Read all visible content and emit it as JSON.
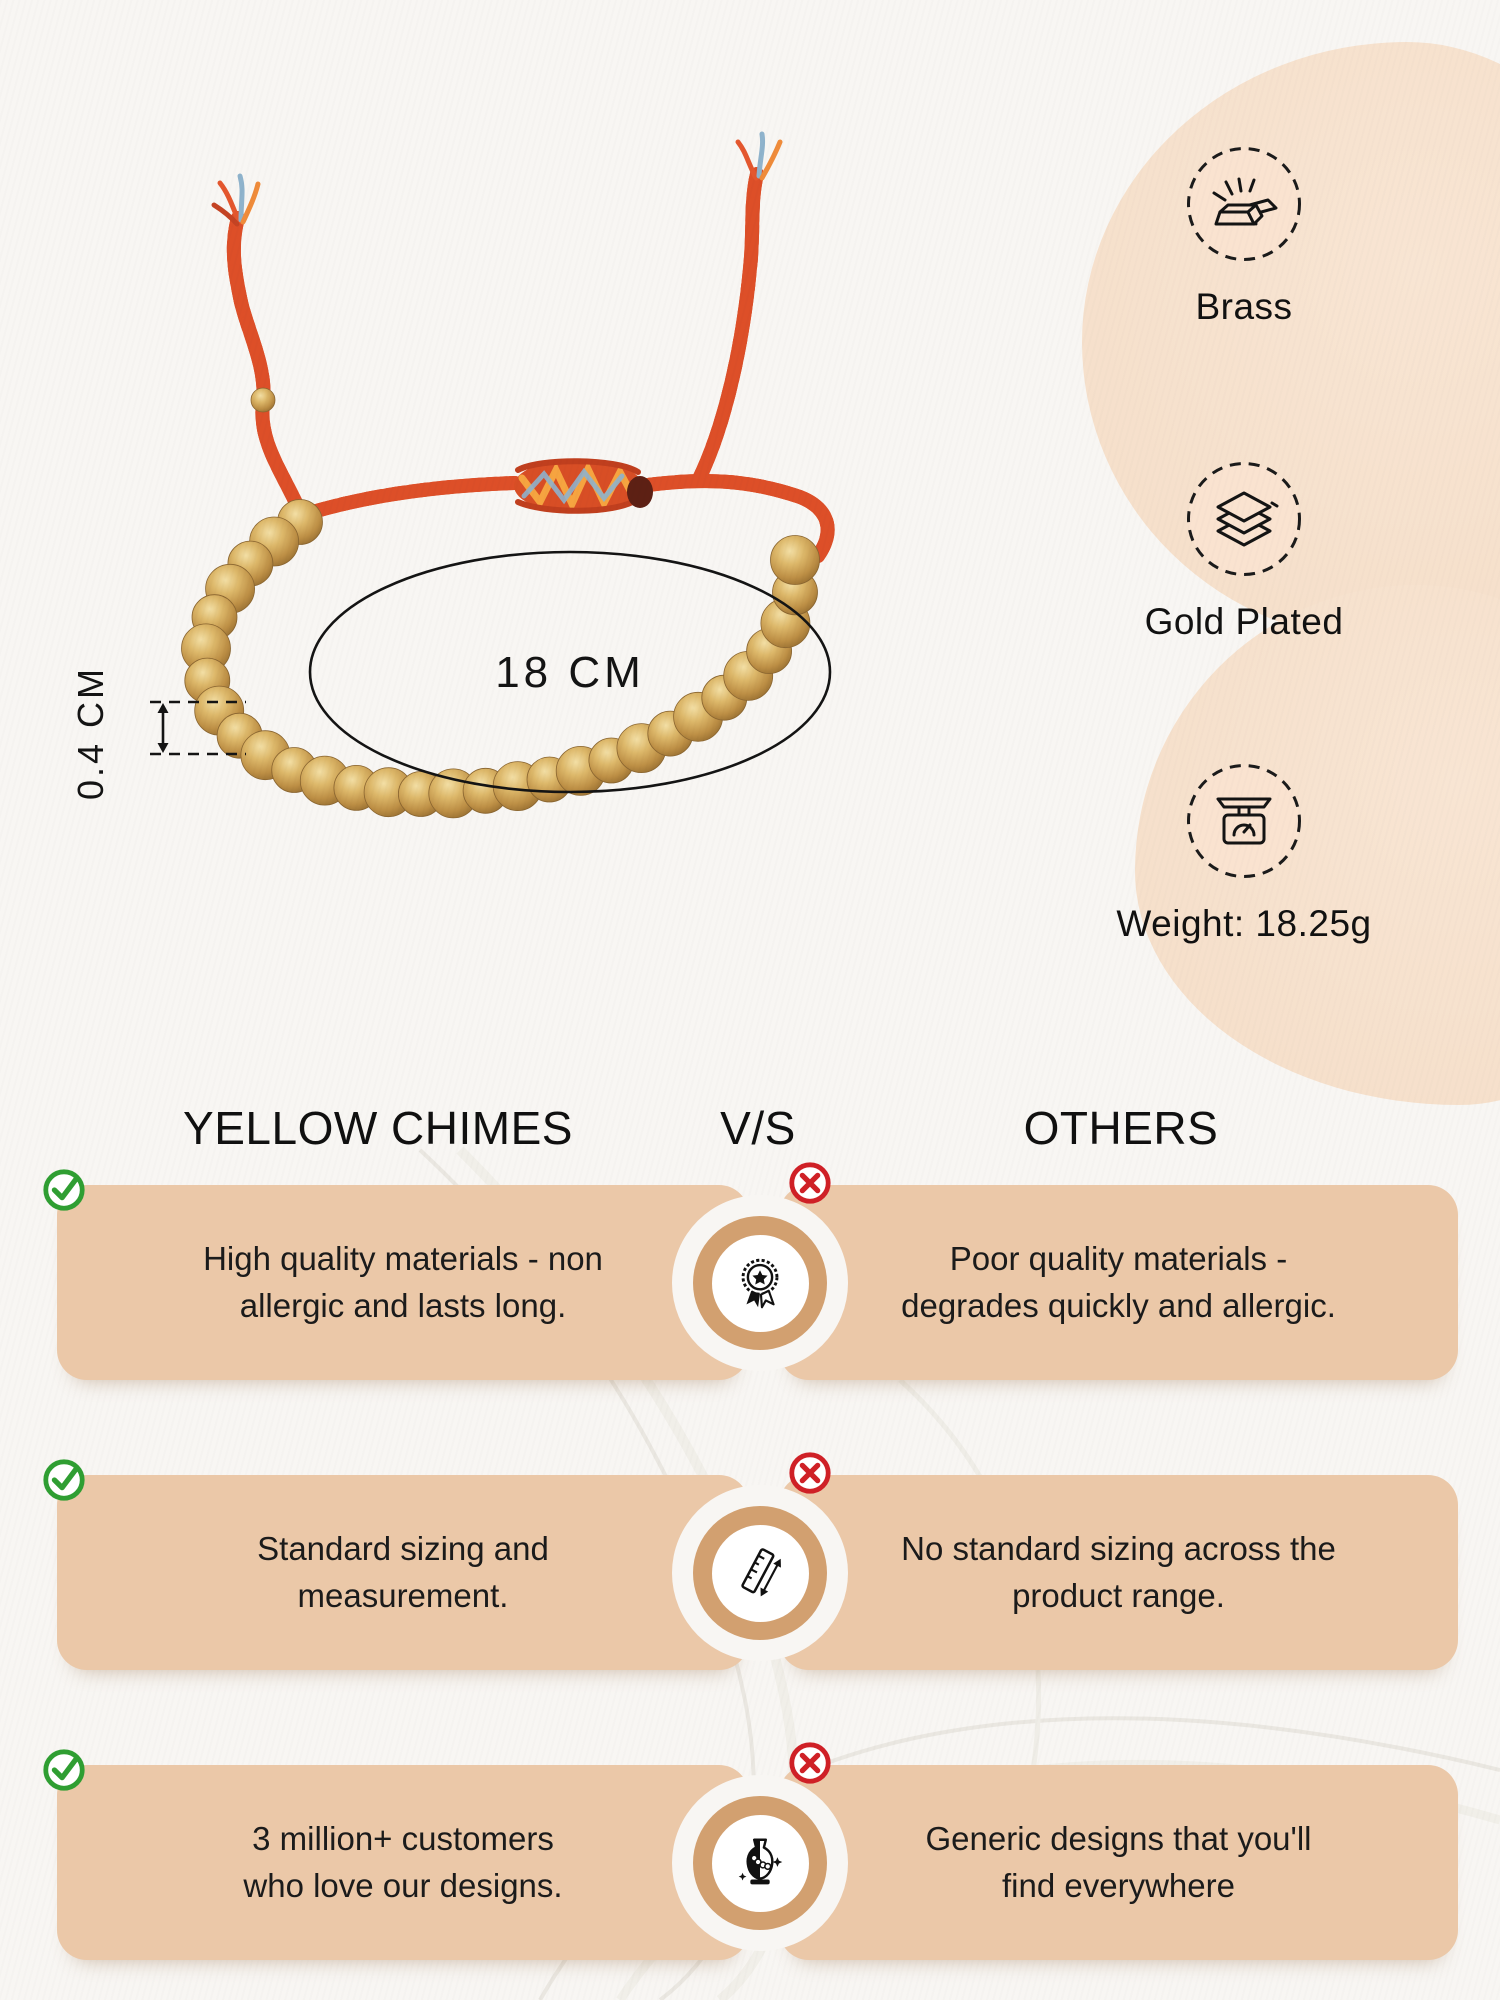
{
  "product": {
    "name": "gold-beaded-adjustable-bracelet",
    "circumference_label": "18 CM",
    "bead_size_label": "0.4 CM"
  },
  "specs": [
    {
      "icon": "gold-bars-icon",
      "label": "Brass"
    },
    {
      "icon": "layers-icon",
      "label": "Gold Plated"
    },
    {
      "icon": "weighing-scale-icon",
      "label": "Weight: 18.25g"
    }
  ],
  "comparison": {
    "brand_header": "YELLOW CHIMES",
    "versus": "V/S",
    "others_header": "OTHERS",
    "rows": [
      {
        "icon": "medal-icon",
        "left": "High quality materials - non\nallergic and lasts long.",
        "right": "Poor quality materials -\ndegrades quickly and allergic."
      },
      {
        "icon": "ruler-icon",
        "left": "Standard sizing and\nmeasurement.",
        "right": "No standard sizing across the\nproduct range."
      },
      {
        "icon": "design-icon",
        "left": "3 million+ customers\nwho love our designs.",
        "right": "Generic designs that you'll\nfind everywhere"
      }
    ]
  },
  "colors": {
    "background": "#f8f6f3",
    "card_tan": "#ebc8a8",
    "circle_ring_tan": "#d2a070",
    "peach_blob": "#f7e3d0",
    "spec_circle_fill": "#fae3d0",
    "check_green": "#2f9e32",
    "cross_red": "#cf2026",
    "gold_bead": "#caa15a",
    "cord_orange": "#dd4f28",
    "cord_blue": "#8fb3cc",
    "ink": "#141414"
  }
}
